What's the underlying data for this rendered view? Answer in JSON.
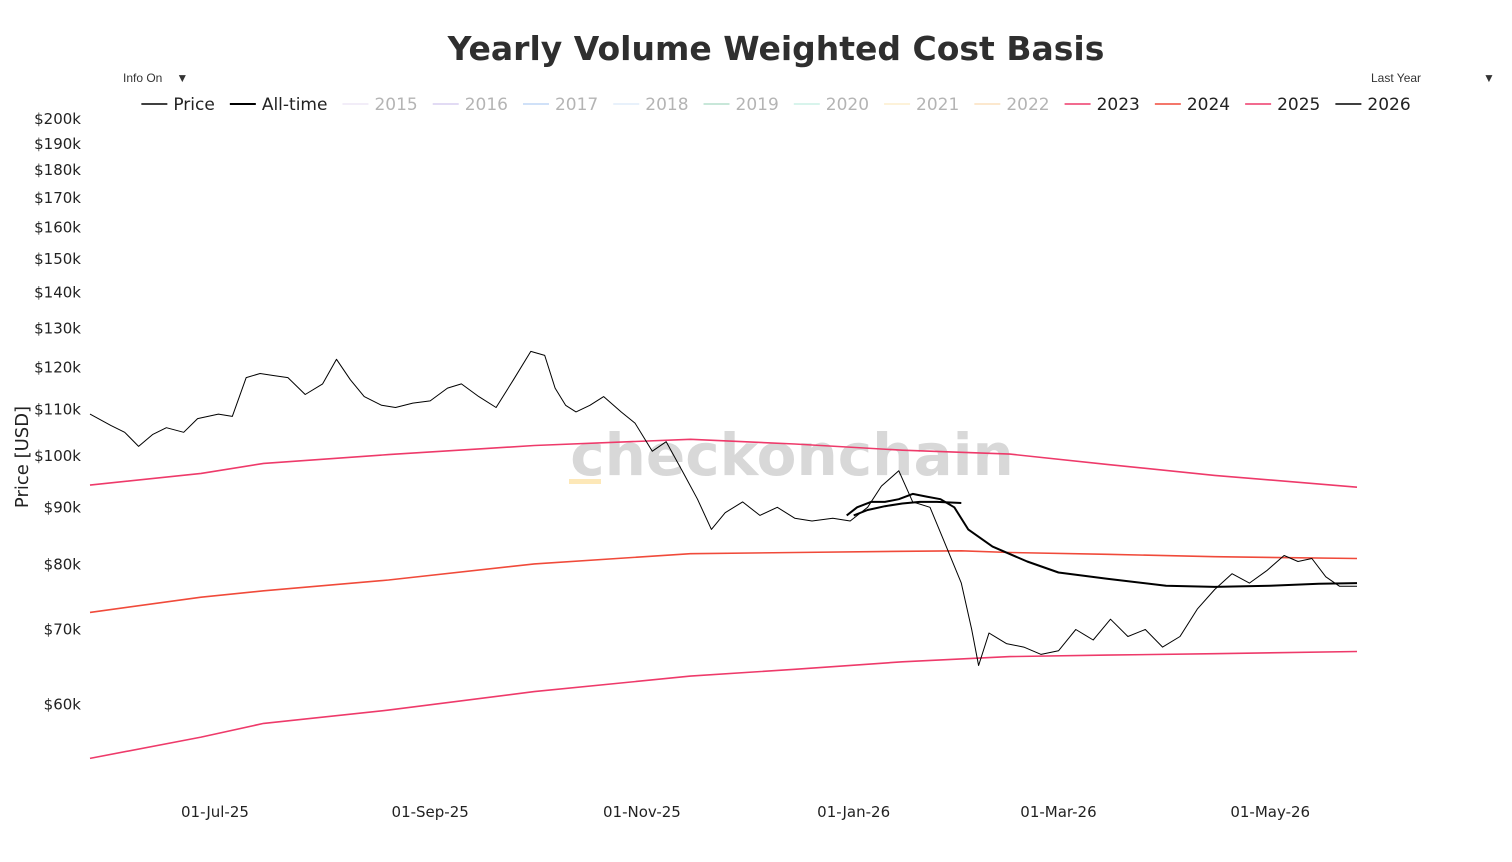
{
  "controls": {
    "info_label": "Info On",
    "range_label": "Last Year",
    "arrow": "▼"
  },
  "watermark": "checkonchain",
  "colors": {
    "price": "#000000",
    "all_time": "#000000",
    "2015": "#e0d4f0",
    "2016": "#b9a8e6",
    "2017": "#8fb7ef",
    "2018": "#c7def5",
    "2019": "#7cc6a4",
    "2020": "#9fe3d3",
    "2021": "#fbe1a3",
    "2022": "#f8c98a",
    "2023": "#ee3a6a",
    "2024": "#f04a3a",
    "2025": "#ee3a6a",
    "2026": "#000000",
    "watermark_accent": "#fde8b8"
  },
  "chart_data": {
    "type": "line",
    "title": "Yearly Volume Weighted Cost Basis",
    "xlabel": "",
    "ylabel": "Price [USD]",
    "y_scale": "log",
    "ylim": [
      52000,
      200000
    ],
    "xlim": [
      "2025-05-26",
      "2026-05-26"
    ],
    "x_ticks": [
      "2025-07-01",
      "2025-09-01",
      "2025-11-01",
      "2026-01-01",
      "2026-03-01",
      "2026-05-01"
    ],
    "x_tick_labels": [
      "01-Jul-25",
      "01-Sep-25",
      "01-Nov-25",
      "01-Jan-26",
      "01-Mar-26",
      "01-May-26"
    ],
    "y_ticks": [
      60000,
      70000,
      80000,
      90000,
      100000,
      110000,
      120000,
      130000,
      140000,
      150000,
      160000,
      170000,
      180000,
      190000,
      200000
    ],
    "y_tick_labels": [
      "$60k",
      "$70k",
      "$80k",
      "$90k",
      "$100k",
      "$110k",
      "$120k",
      "$130k",
      "$140k",
      "$150k",
      "$160k",
      "$170k",
      "$180k",
      "$190k",
      "$200k"
    ],
    "grid": false,
    "legend_position": "top",
    "legend": [
      {
        "name": "Price",
        "active": true
      },
      {
        "name": "All-time",
        "active": true
      },
      {
        "name": "2015",
        "active": false
      },
      {
        "name": "2016",
        "active": false
      },
      {
        "name": "2017",
        "active": false
      },
      {
        "name": "2018",
        "active": false
      },
      {
        "name": "2019",
        "active": false
      },
      {
        "name": "2020",
        "active": false
      },
      {
        "name": "2021",
        "active": false
      },
      {
        "name": "2022",
        "active": false
      },
      {
        "name": "2023",
        "active": true
      },
      {
        "name": "2024",
        "active": true
      },
      {
        "name": "2025",
        "active": true
      },
      {
        "name": "2026",
        "active": true
      }
    ],
    "series": [
      {
        "name": "Price",
        "x": [
          "2025-05-26",
          "2025-06-01",
          "2025-06-05",
          "2025-06-09",
          "2025-06-13",
          "2025-06-17",
          "2025-06-22",
          "2025-06-26",
          "2025-07-02",
          "2025-07-06",
          "2025-07-10",
          "2025-07-14",
          "2025-07-18",
          "2025-07-22",
          "2025-07-27",
          "2025-08-01",
          "2025-08-05",
          "2025-08-09",
          "2025-08-13",
          "2025-08-18",
          "2025-08-22",
          "2025-08-27",
          "2025-09-01",
          "2025-09-06",
          "2025-09-10",
          "2025-09-15",
          "2025-09-20",
          "2025-09-25",
          "2025-09-30",
          "2025-10-04",
          "2025-10-07",
          "2025-10-10",
          "2025-10-13",
          "2025-10-17",
          "2025-10-21",
          "2025-10-26",
          "2025-10-30",
          "2025-11-04",
          "2025-11-08",
          "2025-11-13",
          "2025-11-17",
          "2025-11-21",
          "2025-11-25",
          "2025-11-30",
          "2025-12-05",
          "2025-12-10",
          "2025-12-15",
          "2025-12-20",
          "2025-12-26",
          "2025-12-31",
          "2026-01-05",
          "2026-01-09",
          "2026-01-14",
          "2026-01-18",
          "2026-01-23",
          "2026-01-27",
          "2026-02-01",
          "2026-02-04",
          "2026-02-06",
          "2026-02-09",
          "2026-02-14",
          "2026-02-19",
          "2026-02-24",
          "2026-03-01",
          "2026-03-06",
          "2026-03-11",
          "2026-03-16",
          "2026-03-21",
          "2026-03-26",
          "2026-03-31",
          "2026-04-05",
          "2026-04-10",
          "2026-04-15",
          "2026-04-20",
          "2026-04-25",
          "2026-04-30",
          "2026-05-05",
          "2026-05-09",
          "2026-05-13",
          "2026-05-17",
          "2026-05-21",
          "2026-05-26"
        ],
        "values": [
          109000,
          106500,
          105000,
          102000,
          104500,
          106000,
          105000,
          108000,
          109000,
          108500,
          117500,
          118500,
          118000,
          117500,
          113500,
          116000,
          122000,
          117000,
          113000,
          111000,
          110500,
          111500,
          112000,
          115000,
          116000,
          113000,
          110500,
          117000,
          124000,
          123000,
          115000,
          111000,
          109500,
          111000,
          113000,
          109500,
          107000,
          101000,
          103000,
          96500,
          91500,
          86000,
          89000,
          91000,
          88500,
          90000,
          88000,
          87500,
          88000,
          87500,
          90000,
          94000,
          97000,
          91000,
          90000,
          84000,
          77000,
          70000,
          65000,
          69500,
          68000,
          67500,
          66500,
          67000,
          70000,
          68500,
          71500,
          69000,
          70000,
          67500,
          69000,
          73000,
          76000,
          78500,
          77000,
          79000,
          81500,
          80500,
          81000,
          78000,
          76500,
          76500
        ]
      },
      {
        "name": "All-time",
        "x": [
          "2025-12-30",
          "2026-01-02",
          "2026-01-06",
          "2026-01-10",
          "2026-01-14",
          "2026-01-18",
          "2026-01-22",
          "2026-01-26",
          "2026-01-30",
          "2026-02-03",
          "2026-02-10",
          "2026-02-20",
          "2026-03-01",
          "2026-03-15",
          "2026-04-01",
          "2026-04-15",
          "2026-05-01",
          "2026-05-15",
          "2026-05-26"
        ],
        "values": [
          88500,
          90000,
          91000,
          91000,
          91500,
          92500,
          92000,
          91500,
          90000,
          86000,
          83000,
          80500,
          78700,
          77700,
          76600,
          76400,
          76600,
          76900,
          77000
        ]
      },
      {
        "name": "2023",
        "x": [
          "2025-05-26",
          "2025-06-27",
          "2025-07-15",
          "2025-08-20",
          "2025-10-01",
          "2025-11-15",
          "2025-12-15",
          "2026-01-15",
          "2026-02-15",
          "2026-03-15",
          "2026-04-15",
          "2026-05-26"
        ],
        "values": [
          94200,
          96500,
          98500,
          100300,
          102200,
          103500,
          102500,
          101200,
          100400,
          98300,
          96100,
          93800
        ]
      },
      {
        "name": "2024",
        "x": [
          "2025-05-26",
          "2025-06-27",
          "2025-07-15",
          "2025-08-20",
          "2025-10-01",
          "2025-11-15",
          "2025-12-15",
          "2026-01-15",
          "2026-02-01",
          "2026-02-15",
          "2026-03-15",
          "2026-04-15",
          "2026-05-26"
        ],
        "values": [
          72500,
          74800,
          75800,
          77500,
          80100,
          81800,
          82000,
          82200,
          82300,
          82000,
          81700,
          81300,
          81000
        ]
      },
      {
        "name": "2025",
        "x": [
          "2025-05-26",
          "2025-06-27",
          "2025-07-15",
          "2025-08-20",
          "2025-10-01",
          "2025-11-15",
          "2025-12-15",
          "2026-01-15",
          "2026-02-15",
          "2026-03-15",
          "2026-04-15",
          "2026-05-26"
        ],
        "values": [
          53700,
          56100,
          57700,
          59300,
          61600,
          63600,
          64500,
          65500,
          66200,
          66400,
          66600,
          66900
        ]
      },
      {
        "name": "2026",
        "x": [
          "2026-01-01",
          "2026-01-05",
          "2026-01-10",
          "2026-01-15",
          "2026-01-20",
          "2026-01-25",
          "2026-02-01"
        ],
        "values": [
          88500,
          89500,
          90200,
          90700,
          91000,
          91000,
          90800
        ]
      }
    ]
  }
}
